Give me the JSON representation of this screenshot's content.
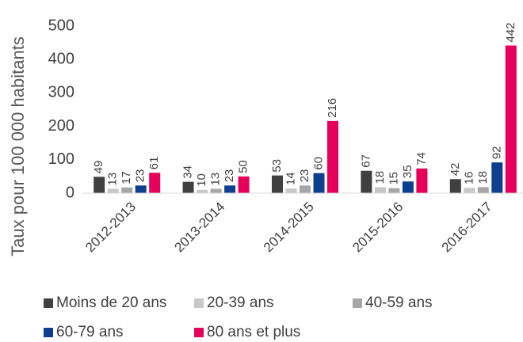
{
  "chart_data": {
    "type": "bar",
    "y_label": "Taux pour 100 000 habitants",
    "categories": [
      "2012-2013",
      "2013-2014",
      "2014-2015",
      "2015-2016",
      "2016-2017"
    ],
    "series": [
      {
        "name": "Moins de 20 ans",
        "color": "#404040",
        "values": [
          49,
          34,
          53,
          67,
          42
        ]
      },
      {
        "name": "20-39 ans",
        "color": "#c8c8c8",
        "values": [
          13,
          10,
          14,
          18,
          16
        ]
      },
      {
        "name": "40-59 ans",
        "color": "#a6a6a6",
        "values": [
          17,
          13,
          23,
          15,
          18
        ]
      },
      {
        "name": "60-79 ans",
        "color": "#0d3f8f",
        "values": [
          23,
          23,
          60,
          35,
          92
        ]
      },
      {
        "name": "80 ans et plus",
        "color": "#e6005c",
        "values": [
          61,
          50,
          216,
          74,
          442
        ]
      }
    ],
    "ylim": [
      0,
      500
    ],
    "yticks": [
      0,
      100,
      200,
      300,
      400,
      500
    ],
    "grid": false,
    "data_labels": true
  }
}
